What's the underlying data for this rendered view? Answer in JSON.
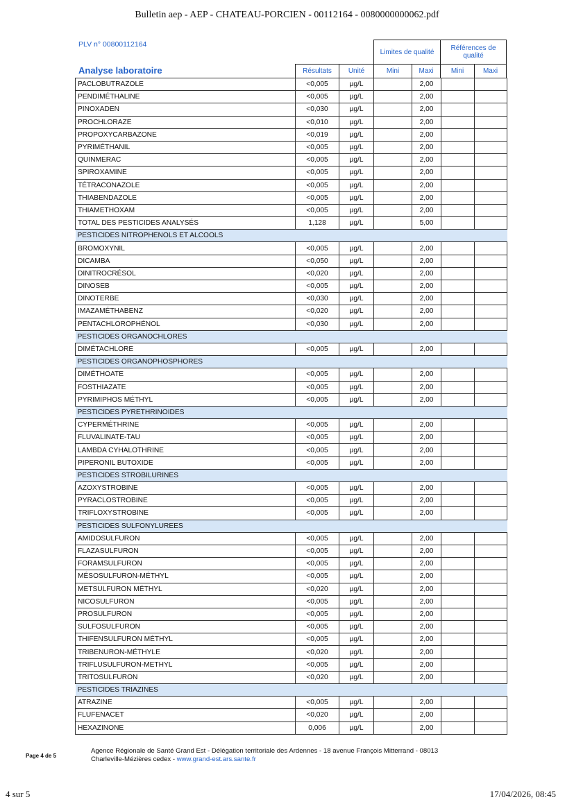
{
  "doc_title": "Bulletin aep - AEP - CHATEAU-PORCIEN - 00112164 - 0080000000062.pdf",
  "plv": "PLV n° 00800112164",
  "analyse_title": "Analyse laboratoire",
  "headers": {
    "limites": "Limites de qualité",
    "references": "Références de qualité",
    "resultats": "Résultats",
    "unite": "Unité",
    "lim_mini": "Mini",
    "lim_maxi": "Maxi",
    "ref_mini": "Mini",
    "ref_maxi": "Maxi"
  },
  "colors": {
    "accent": "#2563c9",
    "section_bg": "#d6e6f7"
  },
  "sections": [
    {
      "title": null,
      "rows": [
        {
          "name": "PACLOBUTRAZOLE",
          "result": "<0,005",
          "unit": "µg/L",
          "maxi": "2,00"
        },
        {
          "name": "PENDIMÉTHALINE",
          "result": "<0,005",
          "unit": "µg/L",
          "maxi": "2,00"
        },
        {
          "name": "PINOXADEN",
          "result": "<0,030",
          "unit": "µg/L",
          "maxi": "2,00"
        },
        {
          "name": "PROCHLORAZE",
          "result": "<0,010",
          "unit": "µg/L",
          "maxi": "2,00"
        },
        {
          "name": "PROPOXYCARBAZONE",
          "result": "<0,019",
          "unit": "µg/L",
          "maxi": "2,00"
        },
        {
          "name": "PYRIMÉTHANIL",
          "result": "<0,005",
          "unit": "µg/L",
          "maxi": "2,00"
        },
        {
          "name": "QUINMERAC",
          "result": "<0,005",
          "unit": "µg/L",
          "maxi": "2,00"
        },
        {
          "name": "SPIROXAMINE",
          "result": "<0,005",
          "unit": "µg/L",
          "maxi": "2,00"
        },
        {
          "name": "TÉTRACONAZOLE",
          "result": "<0,005",
          "unit": "µg/L",
          "maxi": "2,00"
        },
        {
          "name": "THIABENDAZOLE",
          "result": "<0,005",
          "unit": "µg/L",
          "maxi": "2,00"
        },
        {
          "name": "THIAMETHOXAM",
          "result": "<0,005",
          "unit": "µg/L",
          "maxi": "2,00"
        },
        {
          "name": "TOTAL DES PESTICIDES ANALYSÉS",
          "result": "1,128",
          "unit": "µg/L",
          "maxi": "5,00"
        }
      ]
    },
    {
      "title": "PESTICIDES NITROPHENOLS ET ALCOOLS",
      "rows": [
        {
          "name": "BROMOXYNIL",
          "result": "<0,005",
          "unit": "µg/L",
          "maxi": "2,00"
        },
        {
          "name": "DICAMBA",
          "result": "<0,050",
          "unit": "µg/L",
          "maxi": "2,00"
        },
        {
          "name": "DINITROCRÉSOL",
          "result": "<0,020",
          "unit": "µg/L",
          "maxi": "2,00"
        },
        {
          "name": "DINOSEB",
          "result": "<0,005",
          "unit": "µg/L",
          "maxi": "2,00"
        },
        {
          "name": "DINOTERBE",
          "result": "<0,030",
          "unit": "µg/L",
          "maxi": "2,00"
        },
        {
          "name": "IMAZAMÉTHABENZ",
          "result": "<0,020",
          "unit": "µg/L",
          "maxi": "2,00"
        },
        {
          "name": "PENTACHLOROPHÉNOL",
          "result": "<0,030",
          "unit": "µg/L",
          "maxi": "2,00"
        }
      ]
    },
    {
      "title": "PESTICIDES ORGANOCHLORES",
      "rows": [
        {
          "name": "DIMÉTACHLORE",
          "result": "<0,005",
          "unit": "µg/L",
          "maxi": "2,00"
        }
      ]
    },
    {
      "title": "PESTICIDES ORGANOPHOSPHORES",
      "rows": [
        {
          "name": "DIMÉTHOATE",
          "result": "<0,005",
          "unit": "µg/L",
          "maxi": "2,00"
        },
        {
          "name": "FOSTHIAZATE",
          "result": "<0,005",
          "unit": "µg/L",
          "maxi": "2,00"
        },
        {
          "name": "PYRIMIPHOS MÉTHYL",
          "result": "<0,005",
          "unit": "µg/L",
          "maxi": "2,00"
        }
      ]
    },
    {
      "title": "PESTICIDES PYRETHRINOIDES",
      "rows": [
        {
          "name": "CYPERMÉTHRINE",
          "result": "<0,005",
          "unit": "µg/L",
          "maxi": "2,00"
        },
        {
          "name": "FLUVALINATE-TAU",
          "result": "<0,005",
          "unit": "µg/L",
          "maxi": "2,00"
        },
        {
          "name": "LAMBDA CYHALOTHRINE",
          "result": "<0,005",
          "unit": "µg/L",
          "maxi": "2,00"
        },
        {
          "name": "PIPERONIL BUTOXIDE",
          "result": "<0,005",
          "unit": "µg/L",
          "maxi": "2,00"
        }
      ]
    },
    {
      "title": "PESTICIDES STROBILURINES",
      "rows": [
        {
          "name": "AZOXYSTROBINE",
          "result": "<0,005",
          "unit": "µg/L",
          "maxi": "2,00"
        },
        {
          "name": "PYRACLOSTROBINE",
          "result": "<0,005",
          "unit": "µg/L",
          "maxi": "2,00"
        },
        {
          "name": "TRIFLOXYSTROBINE",
          "result": "<0,005",
          "unit": "µg/L",
          "maxi": "2,00"
        }
      ]
    },
    {
      "title": "PESTICIDES SULFONYLUREES",
      "rows": [
        {
          "name": "AMIDOSULFURON",
          "result": "<0,005",
          "unit": "µg/L",
          "maxi": "2,00"
        },
        {
          "name": "FLAZASULFURON",
          "result": "<0,005",
          "unit": "µg/L",
          "maxi": "2,00"
        },
        {
          "name": "FORAMSULFURON",
          "result": "<0,005",
          "unit": "µg/L",
          "maxi": "2,00"
        },
        {
          "name": "MÉSOSULFURON-MÉTHYL",
          "result": "<0,005",
          "unit": "µg/L",
          "maxi": "2,00"
        },
        {
          "name": "METSULFURON MÉTHYL",
          "result": "<0,020",
          "unit": "µg/L",
          "maxi": "2,00"
        },
        {
          "name": "NICOSULFURON",
          "result": "<0,005",
          "unit": "µg/L",
          "maxi": "2,00"
        },
        {
          "name": "PROSULFURON",
          "result": "<0,005",
          "unit": "µg/L",
          "maxi": "2,00"
        },
        {
          "name": "SULFOSULFURON",
          "result": "<0,005",
          "unit": "µg/L",
          "maxi": "2,00"
        },
        {
          "name": "THIFENSULFURON MÉTHYL",
          "result": "<0,005",
          "unit": "µg/L",
          "maxi": "2,00"
        },
        {
          "name": "TRIBENURON-MÉTHYLE",
          "result": "<0,020",
          "unit": "µg/L",
          "maxi": "2,00"
        },
        {
          "name": "TRIFLUSULFURON-METHYL",
          "result": "<0,005",
          "unit": "µg/L",
          "maxi": "2,00"
        },
        {
          "name": "TRITOSULFURON",
          "result": "<0,020",
          "unit": "µg/L",
          "maxi": "2,00"
        }
      ]
    },
    {
      "title": "PESTICIDES TRIAZINES",
      "rows": [
        {
          "name": "ATRAZINE",
          "result": "<0,005",
          "unit": "µg/L",
          "maxi": "2,00"
        },
        {
          "name": "FLUFENACET",
          "result": "<0,020",
          "unit": "µg/L",
          "maxi": "2,00"
        },
        {
          "name": "HEXAZINONE",
          "result": "0,006",
          "unit": "µg/L",
          "maxi": "2,00"
        }
      ]
    }
  ],
  "footer": {
    "page": "Page 4 de 5",
    "address_line1": "Agence Régionale de Santé Grand Est  - Délégation territoriale des Ardennes  - 18 avenue François Mitterrand  -  08013",
    "address_line2": "Charleville-Mézières cedex    - ",
    "website": "www.grand-est.ars.sante.fr"
  },
  "print_footer": {
    "left": "4 sur 5",
    "right": "17/04/2026, 08:45"
  }
}
